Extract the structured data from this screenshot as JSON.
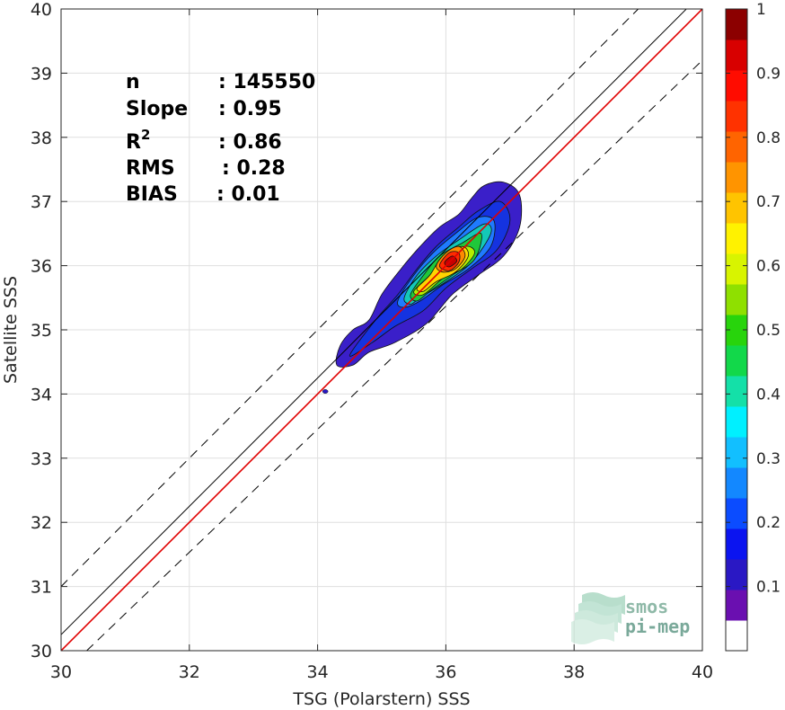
{
  "chart_data": {
    "type": "contour-density",
    "xlabel": "TSG (Polarstern) SSS",
    "ylabel": "Satellite SSS",
    "xlim": [
      30,
      40
    ],
    "ylim": [
      30,
      40
    ],
    "x_ticks": [
      "30",
      "32",
      "34",
      "36",
      "38",
      "40"
    ],
    "y_ticks": [
      "30",
      "31",
      "32",
      "33",
      "34",
      "35",
      "36",
      "37",
      "38",
      "39",
      "40"
    ],
    "grid": true,
    "stats": [
      {
        "label": "n",
        "value": ": 145550"
      },
      {
        "label": "Slope",
        "value": ": 0.95"
      },
      {
        "label": "R",
        "sup": "2",
        "value": ": 0.86"
      },
      {
        "label": "RMS",
        "value": ": 0.28"
      },
      {
        "label": "BIAS",
        "value": ": 0.01"
      }
    ],
    "lines": [
      {
        "role": "identity",
        "color": "#000000",
        "style": "solid",
        "points": [
          [
            30,
            30.25
          ],
          [
            40,
            40.25
          ]
        ]
      },
      {
        "role": "upper-bound",
        "color": "#000000",
        "style": "dashed",
        "points": [
          [
            30,
            31.0
          ],
          [
            40,
            41.0
          ]
        ]
      },
      {
        "role": "lower-bound",
        "color": "#000000",
        "style": "dashed",
        "points": [
          [
            30.4,
            30.0
          ],
          [
            40,
            39.2
          ]
        ]
      },
      {
        "role": "regression",
        "color": "#e00000",
        "style": "solid",
        "points": [
          [
            30,
            30.0
          ],
          [
            40,
            40.0
          ]
        ]
      }
    ],
    "density_contours": [
      {
        "level": 0.05,
        "color": "#3a1fc9",
        "polygon": [
          [
            34.3,
            34.45
          ],
          [
            34.35,
            34.75
          ],
          [
            34.55,
            35.0
          ],
          [
            34.8,
            35.15
          ],
          [
            35.0,
            35.55
          ],
          [
            35.3,
            35.95
          ],
          [
            35.6,
            36.3
          ],
          [
            35.9,
            36.6
          ],
          [
            36.2,
            36.8
          ],
          [
            36.4,
            37.05
          ],
          [
            36.6,
            37.25
          ],
          [
            36.9,
            37.3
          ],
          [
            37.15,
            37.1
          ],
          [
            37.15,
            36.6
          ],
          [
            36.9,
            36.15
          ],
          [
            36.5,
            35.85
          ],
          [
            36.1,
            35.55
          ],
          [
            35.7,
            35.1
          ],
          [
            35.2,
            34.8
          ],
          [
            34.8,
            34.65
          ],
          [
            34.55,
            34.45
          ]
        ]
      },
      {
        "level": 0.15,
        "color": "#1533e0",
        "polygon": [
          [
            34.5,
            34.6
          ],
          [
            34.9,
            35.15
          ],
          [
            35.25,
            35.55
          ],
          [
            35.55,
            35.95
          ],
          [
            35.85,
            36.3
          ],
          [
            36.2,
            36.6
          ],
          [
            36.5,
            36.85
          ],
          [
            36.85,
            37.0
          ],
          [
            37.0,
            36.7
          ],
          [
            36.8,
            36.25
          ],
          [
            36.4,
            35.95
          ],
          [
            36.0,
            35.65
          ],
          [
            35.65,
            35.3
          ],
          [
            35.2,
            35.05
          ],
          [
            34.85,
            34.8
          ]
        ]
      },
      {
        "level": 0.25,
        "color": "#1f7bff",
        "polygon": [
          [
            35.25,
            35.45
          ],
          [
            35.5,
            35.85
          ],
          [
            35.8,
            36.2
          ],
          [
            36.15,
            36.5
          ],
          [
            36.5,
            36.75
          ],
          [
            36.75,
            36.7
          ],
          [
            36.7,
            36.3
          ],
          [
            36.35,
            35.95
          ],
          [
            35.95,
            35.7
          ],
          [
            35.6,
            35.45
          ],
          [
            35.35,
            35.35
          ]
        ]
      },
      {
        "level": 0.35,
        "color": "#14c8b8",
        "polygon": [
          [
            35.35,
            35.5
          ],
          [
            35.55,
            35.85
          ],
          [
            35.85,
            36.15
          ],
          [
            36.2,
            36.4
          ],
          [
            36.6,
            36.65
          ],
          [
            36.7,
            36.5
          ],
          [
            36.4,
            36.05
          ],
          [
            36.0,
            35.75
          ],
          [
            35.6,
            35.5
          ],
          [
            35.45,
            35.4
          ]
        ]
      },
      {
        "level": 0.45,
        "color": "#1fc83a",
        "polygon": [
          [
            35.45,
            35.55
          ],
          [
            35.65,
            35.85
          ],
          [
            35.9,
            36.15
          ],
          [
            36.25,
            36.35
          ],
          [
            36.55,
            36.5
          ],
          [
            36.45,
            36.1
          ],
          [
            36.1,
            35.85
          ],
          [
            35.75,
            35.6
          ],
          [
            35.55,
            35.45
          ]
        ]
      },
      {
        "level": 0.55,
        "color": "#b4f000",
        "polygon": [
          [
            35.5,
            35.6
          ],
          [
            35.75,
            35.85
          ],
          [
            35.95,
            36.1
          ],
          [
            36.3,
            36.3
          ],
          [
            36.45,
            36.2
          ],
          [
            36.25,
            35.95
          ],
          [
            35.95,
            35.8
          ],
          [
            35.65,
            35.55
          ]
        ]
      },
      {
        "level": 0.65,
        "color": "#ffd400",
        "polygon": [
          [
            35.55,
            35.65
          ],
          [
            35.75,
            35.85
          ],
          [
            35.95,
            36.15
          ],
          [
            36.25,
            36.3
          ],
          [
            36.35,
            36.15
          ],
          [
            36.15,
            35.9
          ],
          [
            35.85,
            35.75
          ],
          [
            35.65,
            35.6
          ]
        ]
      },
      {
        "level": 0.75,
        "color": "#ff8a00",
        "polygon": [
          [
            35.85,
            36.0
          ],
          [
            36.0,
            36.2
          ],
          [
            36.2,
            36.3
          ],
          [
            36.3,
            36.15
          ],
          [
            36.15,
            35.95
          ],
          [
            35.95,
            35.9
          ]
        ]
      },
      {
        "level": 0.85,
        "color": "#ff2a00",
        "polygon": [
          [
            35.9,
            36.0
          ],
          [
            36.05,
            36.2
          ],
          [
            36.2,
            36.2
          ],
          [
            36.2,
            36.05
          ],
          [
            36.05,
            35.92
          ]
        ]
      },
      {
        "level": 0.95,
        "color": "#c80000",
        "polygon": [
          [
            35.98,
            36.05
          ],
          [
            36.1,
            36.15
          ],
          [
            36.17,
            36.07
          ],
          [
            36.05,
            35.98
          ]
        ]
      }
    ],
    "colorbar": {
      "ticks": [
        "0.1",
        "0.2",
        "0.3",
        "0.4",
        "0.5",
        "0.6",
        "0.7",
        "0.8",
        "0.9",
        "1"
      ],
      "colors": [
        "#ffffff",
        "#6a0fb0",
        "#2a18c4",
        "#0b14f0",
        "#0b4cff",
        "#1388ff",
        "#12bfff",
        "#00f0ff",
        "#14e0a8",
        "#12d84a",
        "#28d40c",
        "#8fe000",
        "#d8f400",
        "#fff200",
        "#ffc400",
        "#ff9400",
        "#ff6400",
        "#ff3200",
        "#ff0c00",
        "#d80000",
        "#8c0000"
      ]
    }
  },
  "logo": {
    "line1": "smos",
    "line2": "pi-mep"
  }
}
